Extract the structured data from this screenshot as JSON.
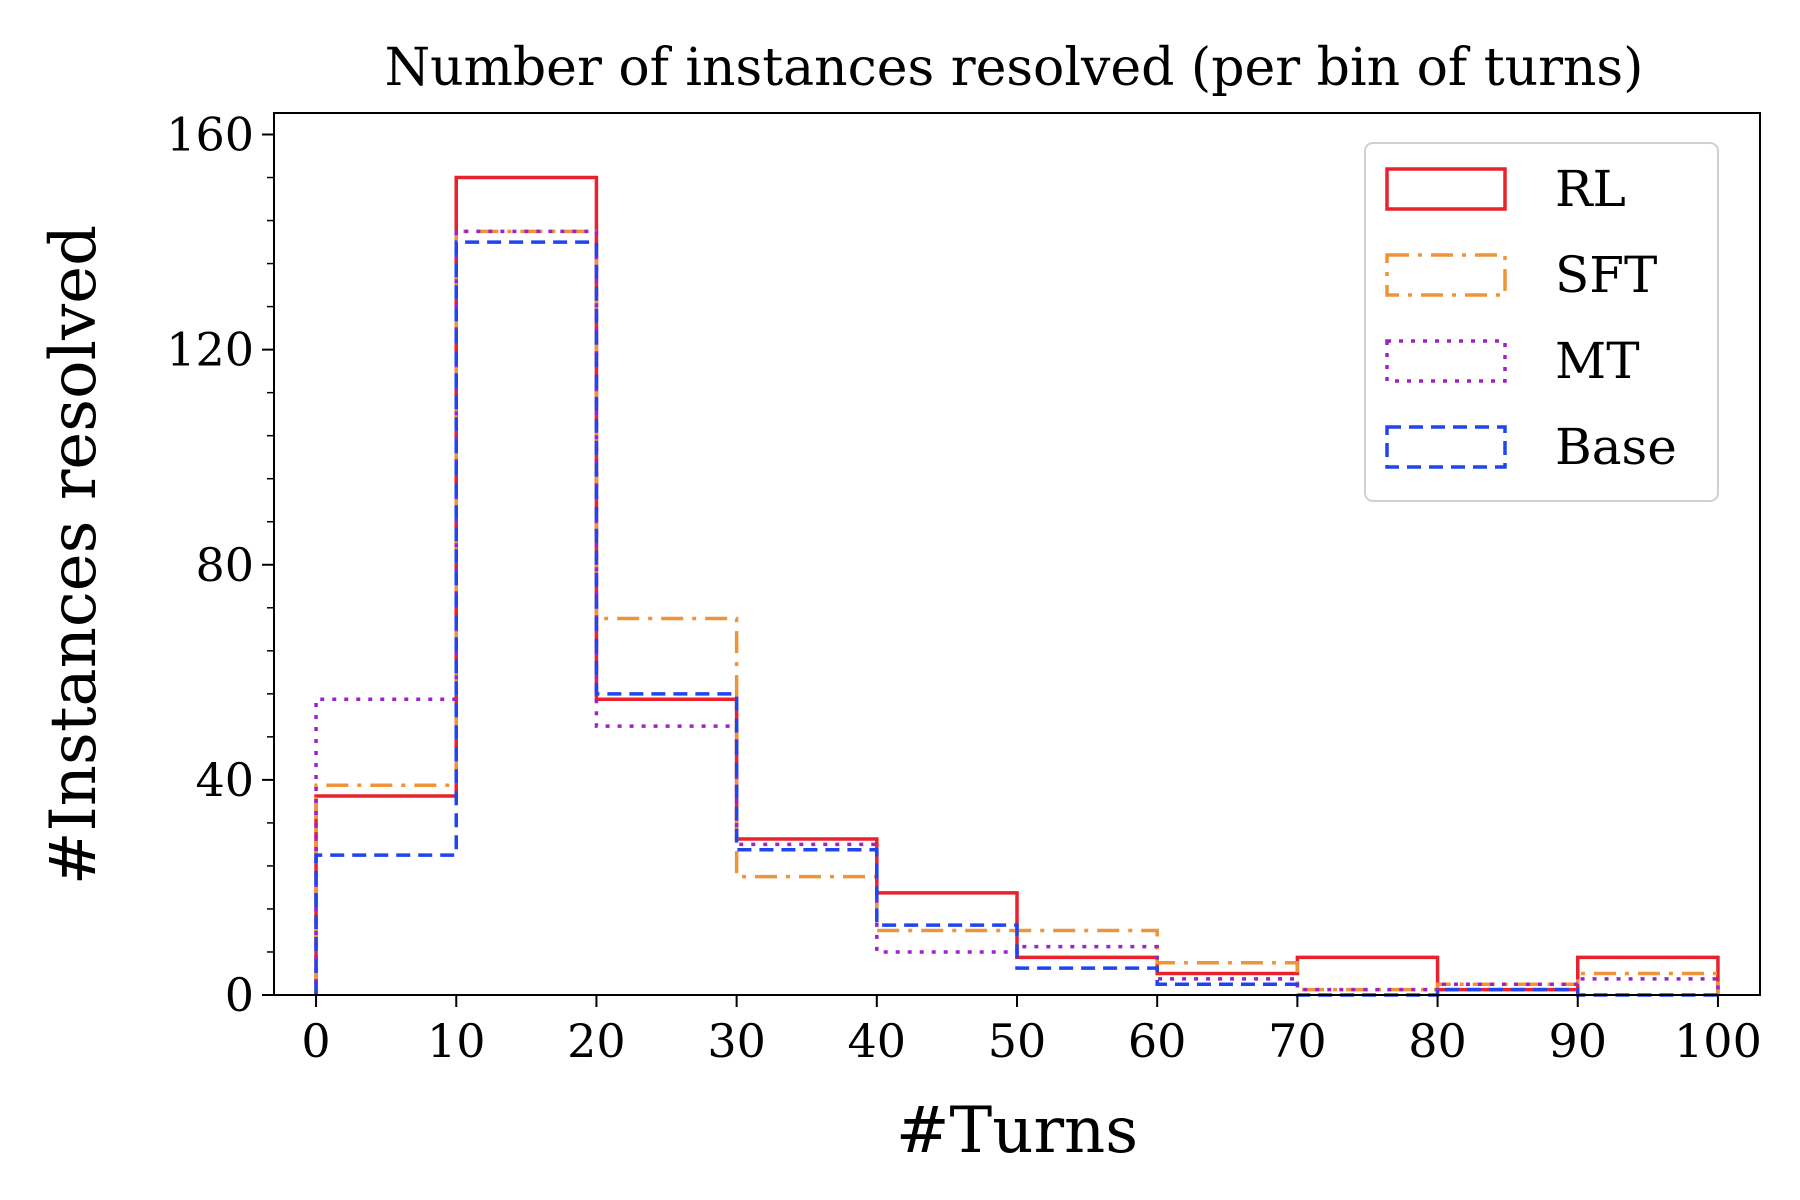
{
  "chart_data": {
    "type": "histogram-step",
    "title": "Number of instances resolved (per bin of turns)",
    "xlabel": "#Turns",
    "ylabel": "#Instances resolved",
    "xlim": [
      -3,
      103
    ],
    "ylim": [
      0,
      164
    ],
    "bin_edges": [
      0,
      10,
      20,
      30,
      40,
      50,
      60,
      70,
      80,
      90,
      100
    ],
    "x_ticks": [
      "0",
      "10",
      "20",
      "30",
      "40",
      "50",
      "60",
      "70",
      "80",
      "90",
      "100"
    ],
    "y_ticks": [
      "0",
      "40",
      "80",
      "120",
      "160"
    ],
    "legend_position": "top-right",
    "grid": false,
    "series": [
      {
        "name": "RL",
        "color": "#e8212d",
        "style": "solid",
        "values": [
          37,
          152,
          55,
          29,
          19,
          7,
          4,
          7,
          1,
          7
        ]
      },
      {
        "name": "SFT",
        "color": "#f0943a",
        "style": "dashdot",
        "values": [
          39,
          142,
          70,
          22,
          12,
          12,
          6,
          1,
          2,
          4
        ]
      },
      {
        "name": "MT",
        "color": "#9a24c8",
        "style": "dotted",
        "values": [
          55,
          142,
          50,
          28,
          8,
          9,
          3,
          1,
          2,
          3
        ]
      },
      {
        "name": "Base",
        "color": "#1f45ef",
        "style": "dashed",
        "values": [
          26,
          140,
          56,
          27,
          13,
          5,
          2,
          0,
          1,
          0
        ]
      }
    ]
  }
}
